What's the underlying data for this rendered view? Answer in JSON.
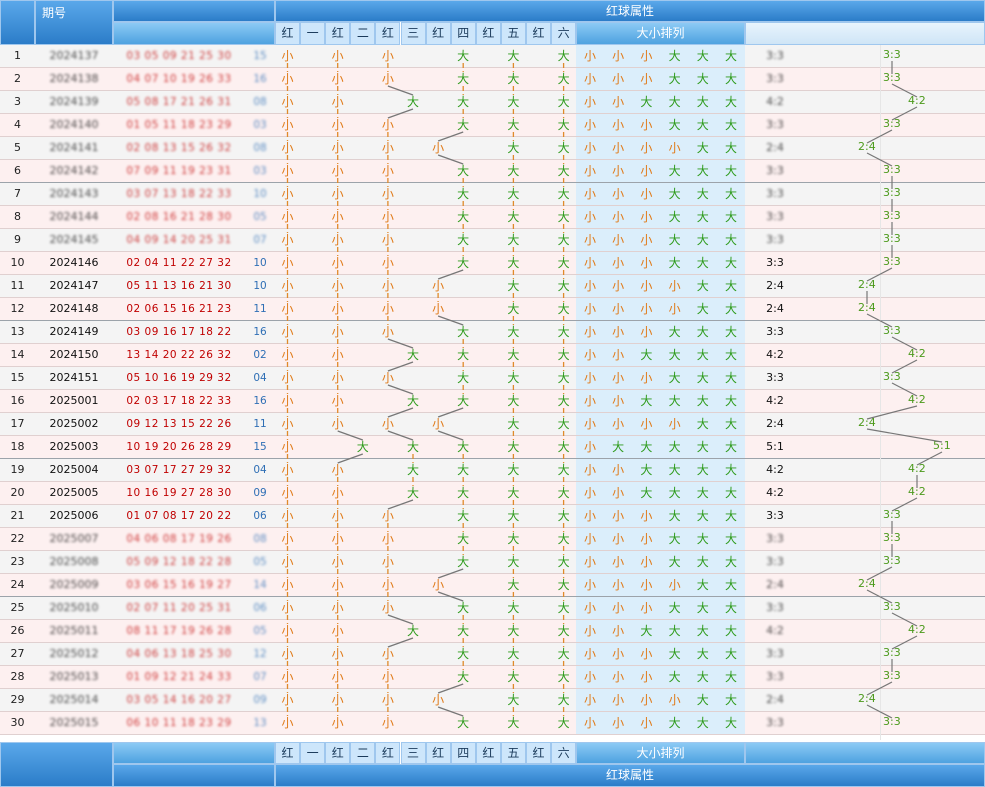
{
  "header": {
    "issue_label": "期号",
    "group_title": "红球属性",
    "pair_labels": [
      "红",
      "一",
      "红",
      "二",
      "红",
      "三",
      "红",
      "四",
      "红",
      "五",
      "红",
      "六"
    ],
    "size_title": "大小排列"
  },
  "colors": {
    "header": "#2b7cc8",
    "small": "#e07b1a",
    "big": "#2e9b1c",
    "red_number": "#c00000",
    "blue_number": "#2f6fb5",
    "ratio": "#4c9a1c"
  },
  "rows": [
    {
      "n": "1",
      "issue": "2024137",
      "reds": "03 05 09 21 25 30",
      "blue": "15",
      "p": [
        "小",
        "小",
        "小",
        "大",
        "大",
        "大"
      ],
      "ratio": "3:3",
      "blur": true
    },
    {
      "n": "2",
      "issue": "2024138",
      "reds": "04 07 10 19 26 33",
      "blue": "16",
      "p": [
        "小",
        "小",
        "小",
        "大",
        "大",
        "大"
      ],
      "ratio": "3:3",
      "blur": true
    },
    {
      "n": "3",
      "issue": "2024139",
      "reds": "05 08 17 21 26 31",
      "blue": "08",
      "p": [
        "小",
        "小",
        "大",
        "大",
        "大",
        "大"
      ],
      "ratio": "4:2",
      "blur": true
    },
    {
      "n": "4",
      "issue": "2024140",
      "reds": "01 05 11 18 23 29",
      "blue": "03",
      "p": [
        "小",
        "小",
        "小",
        "大",
        "大",
        "大"
      ],
      "ratio": "3:3",
      "blur": true
    },
    {
      "n": "5",
      "issue": "2024141",
      "reds": "02 08 13 15 26 32",
      "blue": "08",
      "p": [
        "小",
        "小",
        "小",
        "小",
        "大",
        "大"
      ],
      "ratio": "2:4",
      "blur": true
    },
    {
      "n": "6",
      "issue": "2024142",
      "reds": "07 09 11 19 23 31",
      "blue": "03",
      "p": [
        "小",
        "小",
        "小",
        "大",
        "大",
        "大"
      ],
      "ratio": "3:3",
      "blur": true
    },
    {
      "n": "7",
      "issue": "2024143",
      "reds": "03 07 13 18 22 33",
      "blue": "10",
      "p": [
        "小",
        "小",
        "小",
        "大",
        "大",
        "大"
      ],
      "ratio": "3:3",
      "blur": true
    },
    {
      "n": "8",
      "issue": "2024144",
      "reds": "02 08 16 21 28 30",
      "blue": "05",
      "p": [
        "小",
        "小",
        "小",
        "大",
        "大",
        "大"
      ],
      "ratio": "3:3",
      "blur": true
    },
    {
      "n": "9",
      "issue": "2024145",
      "reds": "04 09 14 20 25 31",
      "blue": "07",
      "p": [
        "小",
        "小",
        "小",
        "大",
        "大",
        "大"
      ],
      "ratio": "3:3",
      "blur": true
    },
    {
      "n": "10",
      "issue": "2024146",
      "reds": "02 04 11 22 27 32",
      "blue": "10",
      "p": [
        "小",
        "小",
        "小",
        "大",
        "大",
        "大"
      ],
      "ratio": "3:3"
    },
    {
      "n": "11",
      "issue": "2024147",
      "reds": "05 11 13 16 21 30",
      "blue": "10",
      "p": [
        "小",
        "小",
        "小",
        "小",
        "大",
        "大"
      ],
      "ratio": "2:4"
    },
    {
      "n": "12",
      "issue": "2024148",
      "reds": "02 06 15 16 21 23",
      "blue": "11",
      "p": [
        "小",
        "小",
        "小",
        "小",
        "大",
        "大"
      ],
      "ratio": "2:4"
    },
    {
      "n": "13",
      "issue": "2024149",
      "reds": "03 09 16 17 18 22",
      "blue": "16",
      "p": [
        "小",
        "小",
        "小",
        "大",
        "大",
        "大"
      ],
      "ratio": "3:3"
    },
    {
      "n": "14",
      "issue": "2024150",
      "reds": "13 14 20 22 26 32",
      "blue": "02",
      "p": [
        "小",
        "小",
        "大",
        "大",
        "大",
        "大"
      ],
      "ratio": "4:2"
    },
    {
      "n": "15",
      "issue": "2024151",
      "reds": "05 10 16 19 29 32",
      "blue": "04",
      "p": [
        "小",
        "小",
        "小",
        "大",
        "大",
        "大"
      ],
      "ratio": "3:3"
    },
    {
      "n": "16",
      "issue": "2025001",
      "reds": "02 03 17 18 22 33",
      "blue": "16",
      "p": [
        "小",
        "小",
        "大",
        "大",
        "大",
        "大"
      ],
      "ratio": "4:2"
    },
    {
      "n": "17",
      "issue": "2025002",
      "reds": "09 12 13 15 22 26",
      "blue": "11",
      "p": [
        "小",
        "小",
        "小",
        "小",
        "大",
        "大"
      ],
      "ratio": "2:4"
    },
    {
      "n": "18",
      "issue": "2025003",
      "reds": "10 19 20 26 28 29",
      "blue": "15",
      "p": [
        "小",
        "大",
        "大",
        "大",
        "大",
        "大"
      ],
      "ratio": "5:1"
    },
    {
      "n": "19",
      "issue": "2025004",
      "reds": "03 07 17 27 29 32",
      "blue": "04",
      "p": [
        "小",
        "小",
        "大",
        "大",
        "大",
        "大"
      ],
      "ratio": "4:2"
    },
    {
      "n": "20",
      "issue": "2025005",
      "reds": "10 16 19 27 28 30",
      "blue": "09",
      "p": [
        "小",
        "小",
        "大",
        "大",
        "大",
        "大"
      ],
      "ratio": "4:2"
    },
    {
      "n": "21",
      "issue": "2025006",
      "reds": "01 07 08 17 20 22",
      "blue": "06",
      "p": [
        "小",
        "小",
        "小",
        "大",
        "大",
        "大"
      ],
      "ratio": "3:3"
    },
    {
      "n": "22",
      "issue": "2025007",
      "reds": "04 06 08 17 19 26",
      "blue": "08",
      "p": [
        "小",
        "小",
        "小",
        "大",
        "大",
        "大"
      ],
      "ratio": "3:3",
      "blur": true
    },
    {
      "n": "23",
      "issue": "2025008",
      "reds": "05 09 12 18 22 28",
      "blue": "05",
      "p": [
        "小",
        "小",
        "小",
        "大",
        "大",
        "大"
      ],
      "ratio": "3:3",
      "blur": true
    },
    {
      "n": "24",
      "issue": "2025009",
      "reds": "03 06 15 16 19 27",
      "blue": "14",
      "p": [
        "小",
        "小",
        "小",
        "小",
        "大",
        "大"
      ],
      "ratio": "2:4",
      "blur": true
    },
    {
      "n": "25",
      "issue": "2025010",
      "reds": "02 07 11 20 25 31",
      "blue": "06",
      "p": [
        "小",
        "小",
        "小",
        "大",
        "大",
        "大"
      ],
      "ratio": "3:3",
      "blur": true
    },
    {
      "n": "26",
      "issue": "2025011",
      "reds": "08 11 17 19 26 28",
      "blue": "05",
      "p": [
        "小",
        "小",
        "大",
        "大",
        "大",
        "大"
      ],
      "ratio": "4:2",
      "blur": true
    },
    {
      "n": "27",
      "issue": "2025012",
      "reds": "04 06 13 18 25 30",
      "blue": "12",
      "p": [
        "小",
        "小",
        "小",
        "大",
        "大",
        "大"
      ],
      "ratio": "3:3",
      "blur": true
    },
    {
      "n": "28",
      "issue": "2025013",
      "reds": "01 09 12 21 24 33",
      "blue": "07",
      "p": [
        "小",
        "小",
        "小",
        "大",
        "大",
        "大"
      ],
      "ratio": "3:3",
      "blur": true
    },
    {
      "n": "29",
      "issue": "2025014",
      "reds": "03 05 14 16 20 27",
      "blue": "09",
      "p": [
        "小",
        "小",
        "小",
        "小",
        "大",
        "大"
      ],
      "ratio": "2:4",
      "blur": true
    },
    {
      "n": "30",
      "issue": "2025015",
      "reds": "06 10 11 18 23 29",
      "blue": "13",
      "p": [
        "小",
        "小",
        "小",
        "大",
        "大",
        "大"
      ],
      "ratio": "3:3",
      "blur": true
    }
  ]
}
